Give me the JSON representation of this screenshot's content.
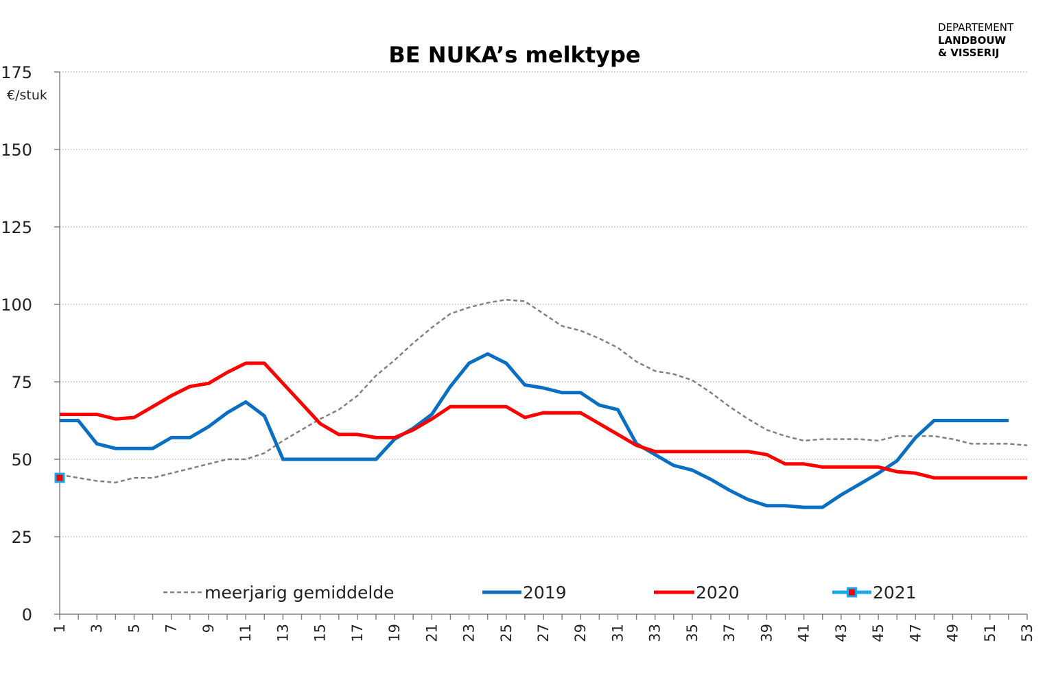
{
  "logo": {
    "line1": "DEPARTEMENT",
    "line2": "LANDBOUW",
    "line3": "& VISSERIJ"
  },
  "chart_data": {
    "type": "line",
    "title": "BE NUKA’s melktype",
    "ylabel": "€/stuk",
    "xlabel": "",
    "ylim": [
      0,
      175
    ],
    "yticks": [
      0,
      25,
      50,
      75,
      100,
      125,
      150,
      175
    ],
    "xlim": [
      1,
      53
    ],
    "xticks": [
      1,
      3,
      5,
      7,
      9,
      11,
      13,
      15,
      17,
      19,
      21,
      23,
      25,
      27,
      29,
      31,
      33,
      35,
      37,
      39,
      41,
      43,
      45,
      47,
      49,
      51,
      53
    ],
    "grid": "horizontal dotted",
    "legend_position": "bottom",
    "series": [
      {
        "name": "meerjarig gemiddelde",
        "color": "#808080",
        "style": "dashed",
        "x": [
          1,
          2,
          3,
          4,
          5,
          6,
          7,
          8,
          9,
          10,
          11,
          12,
          13,
          14,
          15,
          16,
          17,
          18,
          19,
          20,
          21,
          22,
          23,
          24,
          25,
          26,
          27,
          28,
          29,
          30,
          31,
          32,
          33,
          34,
          35,
          36,
          37,
          38,
          39,
          40,
          41,
          42,
          43,
          44,
          45,
          46,
          47,
          48,
          49,
          50,
          51,
          52,
          53
        ],
        "values": [
          45,
          44,
          43,
          42.5,
          44,
          44,
          45.5,
          47,
          48.5,
          50,
          50,
          52,
          56,
          59.5,
          63,
          66,
          70.5,
          77,
          82,
          87.5,
          92.5,
          97,
          99,
          100.5,
          101.5,
          101,
          97,
          93,
          91.5,
          89,
          86,
          81.5,
          78.5,
          77.5,
          75.5,
          71.5,
          67,
          63,
          59.5,
          57.5,
          56,
          56.5,
          56.5,
          56.5,
          56,
          57.5,
          57.5,
          57.5,
          56.5,
          55,
          55,
          55,
          54.5
        ]
      },
      {
        "name": "2019",
        "color": "#0a6fc2",
        "style": "solid",
        "x": [
          1,
          2,
          3,
          4,
          5,
          6,
          7,
          8,
          9,
          10,
          11,
          12,
          13,
          14,
          15,
          16,
          17,
          18,
          19,
          20,
          21,
          22,
          23,
          24,
          25,
          26,
          27,
          28,
          29,
          30,
          31,
          32,
          33,
          34,
          35,
          36,
          37,
          38,
          39,
          40,
          41,
          42,
          43,
          44,
          45,
          46,
          47,
          48,
          49,
          50,
          51,
          52
        ],
        "values": [
          62.5,
          62.5,
          55,
          53.5,
          53.5,
          53.5,
          57,
          57,
          60.5,
          65,
          68.5,
          64,
          50,
          50,
          50,
          50,
          50,
          50,
          56.5,
          60,
          64.5,
          73.5,
          81,
          84,
          81,
          74,
          73,
          71.5,
          71.5,
          67.5,
          66,
          55,
          51.5,
          48,
          46.5,
          43.5,
          40,
          37,
          35,
          35,
          34.5,
          34.5,
          38.5,
          42,
          45.5,
          49.5,
          57,
          62.5,
          62.5,
          62.5,
          62.5,
          62.5
        ]
      },
      {
        "name": "2020",
        "color": "#ff0000",
        "style": "solid",
        "x": [
          1,
          2,
          3,
          4,
          5,
          6,
          7,
          8,
          9,
          10,
          11,
          12,
          13,
          14,
          15,
          16,
          17,
          18,
          19,
          20,
          21,
          22,
          23,
          24,
          25,
          26,
          27,
          28,
          29,
          30,
          31,
          32,
          33,
          34,
          35,
          36,
          37,
          38,
          39,
          40,
          41,
          42,
          43,
          44,
          45,
          46,
          47,
          48,
          49,
          50,
          51,
          52,
          53
        ],
        "values": [
          64.5,
          64.5,
          64.5,
          63,
          63.5,
          67,
          70.5,
          73.5,
          74.5,
          78,
          81,
          81,
          74.5,
          68,
          61.5,
          58,
          58,
          57,
          57,
          59.5,
          63,
          67,
          67,
          67,
          67,
          63.5,
          65,
          65,
          65,
          61.5,
          58,
          54.5,
          52.5,
          52.5,
          52.5,
          52.5,
          52.5,
          52.5,
          51.5,
          48.5,
          48.5,
          47.5,
          47.5,
          47.5,
          47.5,
          46,
          45.5,
          44,
          44,
          44,
          44,
          44,
          44
        ]
      },
      {
        "name": "2021",
        "color": "#1aa9e6",
        "marker_color": "#ff0000",
        "style": "solid-marker",
        "x": [
          1
        ],
        "values": [
          44
        ]
      }
    ]
  }
}
